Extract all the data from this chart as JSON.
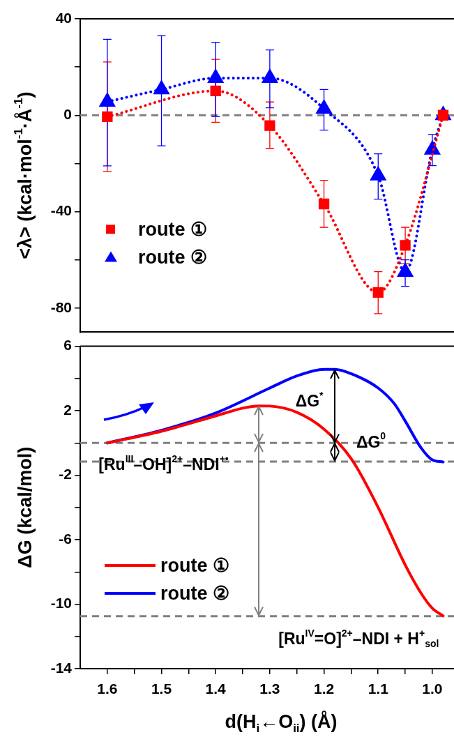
{
  "chart_data": [
    {
      "type": "line",
      "ylabel": "<λ> (kcal·mol$^{-1}$·Å$^{-1}$)",
      "xlim": [
        1.65,
        0.96
      ],
      "ylim": [
        -90,
        40
      ],
      "yticks": [
        40,
        {
          "value": 20,
          "label": null
        },
        0,
        {
          "value": -20,
          "label": null
        },
        -40,
        {
          "value": -60,
          "label": null
        },
        -80
      ],
      "tick_labels": "y",
      "legend": "bottom left",
      "line_style": "dotted",
      "ref_lines": [
        {
          "axis": "y",
          "value": 0,
          "color": "#808080",
          "line_style": "dashed"
        }
      ],
      "series": [
        {
          "name": "route ①",
          "color": "#ff0000",
          "marker": "square",
          "x": [
            1.6,
            1.5,
            1.4,
            1.3,
            1.2,
            1.1,
            1.05,
            0.98
          ],
          "values": [
            -0.6,
            null,
            10.1,
            -4.3,
            -36.8,
            -73.5,
            -54,
            0
          ],
          "errors": [
            [
              -23.3,
              22.1
            ],
            null,
            [
              -2.9,
              23.2
            ],
            [
              -13.8,
              5.5
            ],
            [
              -46.5,
              -27
            ],
            [
              -82.3,
              -64.9
            ],
            [
              -61.6,
              -46.5
            ],
            null
          ]
        },
        {
          "name": "route ②",
          "color": "#0000ff",
          "marker": "triangle",
          "x": [
            1.6,
            1.5,
            1.4,
            1.3,
            1.2,
            1.1,
            1.05,
            1.0,
            0.98
          ],
          "values": [
            5.6,
            10.7,
            15.4,
            15.4,
            2.7,
            -25,
            -65,
            -14.3,
            0
          ],
          "errors": [
            [
              -21,
              31.5
            ],
            [
              -12.7,
              33
            ],
            [
              -0.5,
              30.3
            ],
            [
              3.1,
              27.1
            ],
            [
              -6.2,
              10.7
            ],
            [
              -34.8,
              -16
            ],
            [
              -71,
              -60
            ],
            [
              -20.9,
              -8
            ],
            null
          ]
        }
      ]
    },
    {
      "type": "line",
      "ylabel": "ΔG (kcal/mol)",
      "xlabel": "d(H$_{i}$←O$_{ii}$) (Å)",
      "xlim": [
        1.65,
        0.96
      ],
      "ylim": [
        -14,
        6
      ],
      "xticks": [
        1.6,
        {
          "value": 1.55,
          "label": null
        },
        1.5,
        {
          "value": 1.45,
          "label": null
        },
        1.4,
        {
          "value": 1.35,
          "label": null
        },
        1.3,
        {
          "value": 1.25,
          "label": null
        },
        1.2,
        {
          "value": 1.15,
          "label": null
        },
        1.1,
        {
          "value": 1.05,
          "label": null
        },
        {
          "value": 1.0,
          "label": "1.0"
        }
      ],
      "yticks": [
        6,
        {
          "value": 4,
          "label": null
        },
        2,
        {
          "value": 0,
          "label": null
        },
        -2,
        {
          "value": -4,
          "label": null
        },
        -6,
        {
          "value": -8,
          "label": null
        },
        -10,
        {
          "value": -12,
          "label": null
        },
        -14
      ],
      "legend": "bottom left",
      "line_style": "solid",
      "marker": "none",
      "ref_lines": [
        {
          "axis": "y",
          "value": 0,
          "color": "#808080",
          "line_style": "dashed"
        },
        {
          "axis": "y",
          "value": -1.15,
          "color": "#808080",
          "line_style": "dashed"
        },
        {
          "axis": "y",
          "value": -10.75,
          "color": "#808080",
          "line_style": "dashed"
        }
      ],
      "annotations": [
        "ΔG$^{*}$",
        "ΔG$^{0}$",
        "[Ru$^{III}$–OH]$^{2+}$–NDI$^{+•}$",
        "[Ru$^{IV}$=O]$^{2+}$–NDI + H$^{+}$$_{sol}$"
      ],
      "series": [
        {
          "name": "route ①",
          "color": "#ff0000",
          "x": [
            1.6,
            1.5,
            1.4,
            1.35,
            1.32,
            1.3,
            1.25,
            1.2,
            1.15,
            1.1,
            1.05,
            1.02,
            1.0,
            0.98
          ],
          "values": [
            0,
            0.73,
            1.68,
            2.16,
            2.3,
            2.29,
            1.9,
            0.86,
            -0.96,
            -4.0,
            -7.57,
            -9.36,
            -10.25,
            -10.73
          ]
        },
        {
          "name": "route ②",
          "color": "#0000ff",
          "x": [
            1.6,
            1.5,
            1.4,
            1.3,
            1.25,
            1.2,
            1.18,
            1.15,
            1.1,
            1.07,
            1.05,
            1.02,
            1.0,
            0.98
          ],
          "values": [
            0,
            0.79,
            1.86,
            3.41,
            4.16,
            4.57,
            4.57,
            4.3,
            3.41,
            2.43,
            1.36,
            -0.34,
            -1.05,
            -1.18
          ]
        }
      ]
    }
  ]
}
